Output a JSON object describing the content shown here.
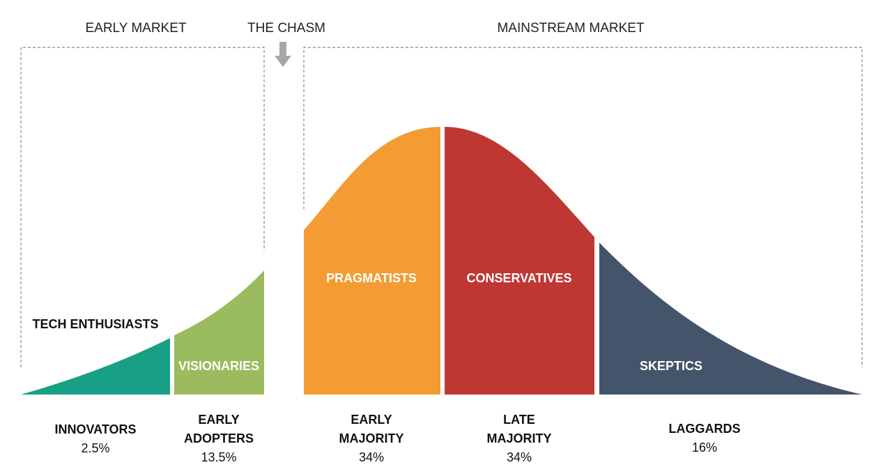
{
  "headers": {
    "early_market": "EARLY MARKET",
    "chasm": "THE CHASM",
    "mainstream_market": "MAINSTREAM MARKET"
  },
  "segments": [
    {
      "inner_label": "TECH ENTHUSIASTS",
      "name": [
        "INNOVATORS"
      ],
      "share": "2.5%"
    },
    {
      "inner_label": "VISIONARIES",
      "name": [
        "EARLY",
        "ADOPTERS"
      ],
      "share": "13.5%"
    },
    {
      "inner_label": "PRAGMATISTS",
      "name": [
        "EARLY",
        "MAJORITY"
      ],
      "share": "34%"
    },
    {
      "inner_label": "CONSERVATIVES",
      "name": [
        "LATE",
        "MAJORITY"
      ],
      "share": "34%"
    },
    {
      "inner_label": "SKEPTICS",
      "name": [
        "LAGGARDS"
      ],
      "share": "16%"
    }
  ]
}
